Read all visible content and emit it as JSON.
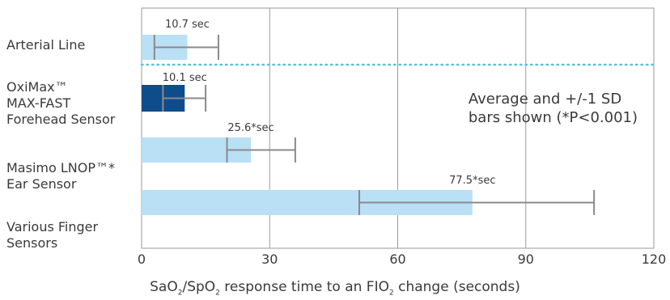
{
  "chart_data": {
    "type": "bar",
    "orientation": "horizontal",
    "categories": [
      "Arterial Line",
      "OxiMax™\nMAX-FAST\nForehead Sensor",
      "Masimo LNOP™*\nEar Sensor",
      "Various Finger\nSensors"
    ],
    "values": [
      10.7,
      10.1,
      25.6,
      77.5
    ],
    "error_low": [
      3,
      5,
      20,
      51
    ],
    "error_high": [
      18,
      15,
      36,
      106
    ],
    "value_labels": [
      "10.7 sec",
      "10.1 sec",
      "25.6*sec",
      "77.5*sec"
    ],
    "bar_colors": [
      "#b9e0f5",
      "#0f4c8c",
      "#b9e0f5",
      "#b9e0f5"
    ],
    "error_color": "#8a8a8a",
    "divider_color": "#5bc3d6",
    "xticks": [
      0,
      30,
      60,
      90,
      120
    ],
    "xlim": [
      0,
      120
    ],
    "grid": true,
    "annotation": "Average and +/-1 SD\nbars shown (*P<0.001)",
    "xlabel_parts": {
      "a": "SaO",
      "sub1": "2",
      "b": "/SpO",
      "sub2": "2",
      "c": " response time to an FIO",
      "sub3": "2",
      "d": " change (seconds)"
    }
  }
}
